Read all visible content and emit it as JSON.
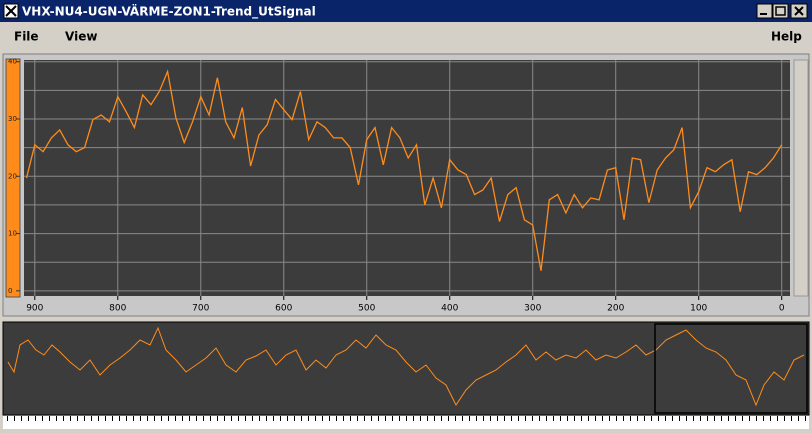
{
  "window": {
    "title": "VHX-NU4-UGN-VÄRME-ZON1-Trend_UtSignal"
  },
  "menu": [
    "File",
    "View",
    "Help"
  ],
  "trend": {
    "type": "line",
    "color": "#ff8c1a",
    "grid": true,
    "xlim": [
      913,
      -10
    ],
    "ylim": [
      -0.9,
      40.3
    ],
    "xticks": [
      900,
      800,
      700,
      600,
      500,
      400,
      300,
      200,
      100,
      0
    ],
    "yticks": [
      0,
      10,
      20,
      30,
      40
    ],
    "ygrid": [
      0,
      5,
      10,
      15,
      20,
      25,
      30,
      35,
      40
    ],
    "x": [
      910,
      900,
      890,
      880,
      870,
      860,
      850,
      840,
      830,
      820,
      810,
      800,
      790,
      780,
      770,
      760,
      750,
      740,
      730,
      720,
      710,
      700,
      690,
      680,
      670,
      660,
      650,
      640,
      630,
      620,
      610,
      600,
      590,
      580,
      570,
      560,
      550,
      540,
      530,
      520,
      510,
      500,
      490,
      480,
      470,
      460,
      450,
      440,
      430,
      420,
      410,
      400,
      390,
      380,
      370,
      360,
      350,
      340,
      330,
      320,
      310,
      300,
      290,
      280,
      270,
      260,
      250,
      240,
      230,
      220,
      210,
      200,
      190,
      180,
      170,
      160,
      150,
      140,
      130,
      120,
      110,
      100,
      90,
      80,
      70,
      60,
      50,
      40,
      30,
      20,
      10,
      0
    ],
    "values": [
      19.7,
      25.5,
      24.3,
      26.7,
      28.1,
      25.5,
      24.3,
      25.0,
      29.9,
      30.7,
      29.5,
      33.9,
      31.3,
      28.5,
      34.2,
      32.5,
      34.8,
      38.3,
      30.2,
      25.9,
      29.5,
      33.9,
      30.7,
      37.2,
      29.5,
      26.7,
      32.0,
      21.8,
      27.2,
      29.0,
      33.4,
      31.6,
      29.9,
      34.8,
      26.4,
      29.5,
      28.5,
      26.7,
      26.7,
      25.0,
      18.5,
      26.4,
      28.5,
      22.0,
      28.5,
      26.7,
      23.2,
      25.5,
      15.0,
      19.7,
      14.5,
      22.9,
      21.1,
      20.3,
      16.8,
      17.6,
      19.7,
      12.1,
      16.8,
      18.0,
      12.4,
      11.5,
      3.5,
      15.9,
      16.8,
      13.6,
      16.8,
      14.5,
      16.2,
      15.9,
      21.1,
      21.5,
      12.4,
      23.2,
      22.9,
      15.4,
      21.1,
      23.2,
      24.6,
      28.5,
      14.5,
      17.3,
      21.5,
      20.8,
      22.0,
      22.9,
      13.8,
      20.8,
      20.3,
      21.5,
      23.2,
      25.5
    ]
  }
}
